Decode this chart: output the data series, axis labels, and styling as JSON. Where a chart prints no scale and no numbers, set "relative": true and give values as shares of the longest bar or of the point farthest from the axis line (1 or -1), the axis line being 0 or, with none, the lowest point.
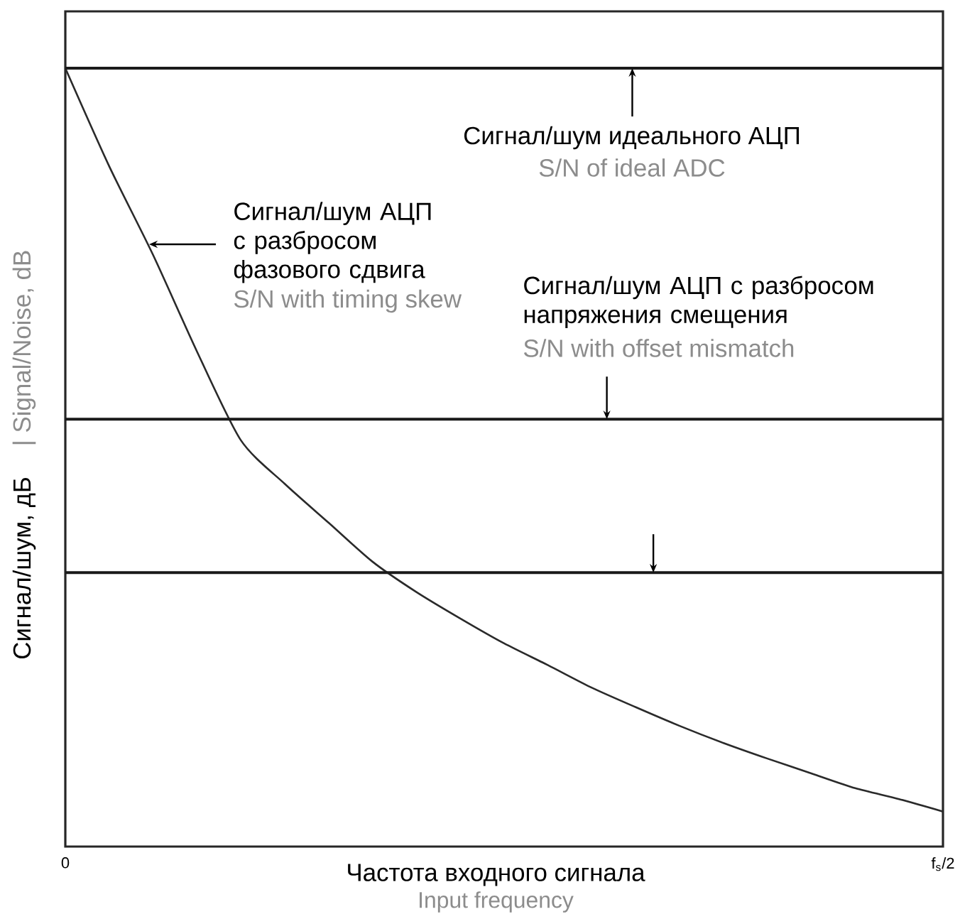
{
  "chart_data": {
    "type": "line",
    "relative": true,
    "xlabel": "Частота входного сигнала",
    "ylabel": "Сигнал/шум, дБ",
    "categories": [
      "0",
      null,
      null,
      null,
      null,
      null,
      null,
      null,
      null,
      null,
      null,
      null,
      null,
      null,
      null,
      null,
      null,
      null,
      null,
      null,
      "f$_{s}$/2"
    ],
    "series": [
      {
        "color": "#2a2a2a",
        "values": [
          1.0,
          0.874,
          0.76,
          0.636,
          0.522,
          0.466,
          0.416,
          0.366,
          0.327,
          0.293,
          0.261,
          0.233,
          0.204,
          0.179,
          0.155,
          0.133,
          0.113,
          0.094,
          0.075,
          0.061,
          0.045
        ]
      }
    ],
    "ref_lines": [
      {
        "axis": "y",
        "value": 1,
        "color": "#1a1a1a"
      },
      {
        "axis": "y",
        "value": 0.549,
        "color": "#1a1a1a"
      },
      {
        "axis": "y",
        "value": 0.352,
        "color": "#1a1a1a"
      }
    ],
    "annotations": [
      "Сигнал/шум идеального АЦП",
      "S/N of ideal ADC",
      "Сигнал/шум  АЦП с разбросом фазового сдвига",
      "S/N with timing skew",
      "Сигнал/шум  АЦП с разбросом напряжения смещения",
      "S/N with offset mismatch",
      "| Signal/Noise, dB",
      "Input frequency"
    ],
    "marker": "none",
    "line_style": "solid"
  }
}
